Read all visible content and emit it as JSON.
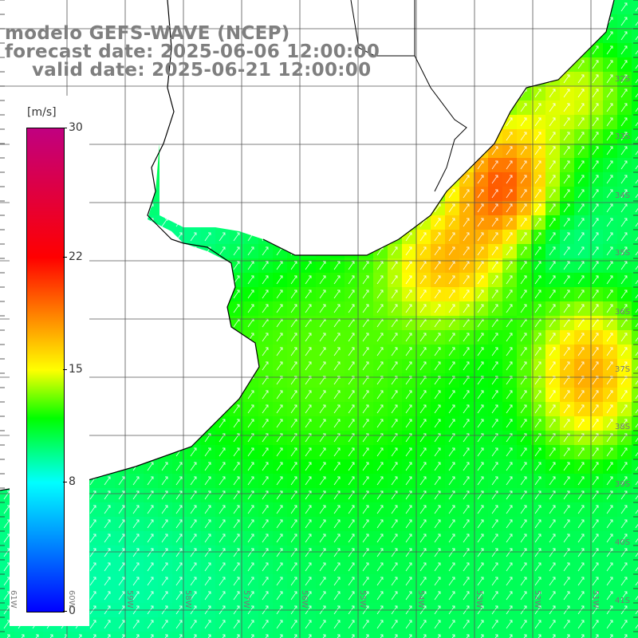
{
  "title": {
    "model": "modelo GEFS-WAVE (NCEP)",
    "forecast": "forecast date: 2025-06-06 12:00:00",
    "valid": "valid date: 2025-06-21 12:00:00"
  },
  "colorbar": {
    "unit": "[m/s]",
    "ticks": [
      "30",
      "22",
      "15",
      "8",
      "0"
    ],
    "tick_values": [
      30,
      22,
      15,
      8,
      0
    ],
    "min": 0,
    "max": 30,
    "stops": [
      {
        "v": 0,
        "color": "#0000ff"
      },
      {
        "v": 8,
        "color": "#00ffff"
      },
      {
        "v": 12,
        "color": "#00ff00"
      },
      {
        "v": 15,
        "color": "#ffff00"
      },
      {
        "v": 22,
        "color": "#ff0000"
      },
      {
        "v": 30,
        "color": "#c00080"
      }
    ]
  },
  "lat_labels": [
    "32S",
    "33S",
    "34S",
    "35S",
    "36S",
    "37S",
    "38S",
    "39S",
    "40S",
    "41S"
  ],
  "lon_labels": [
    "61W",
    "60W",
    "59W",
    "58W",
    "57W",
    "56W",
    "55W",
    "54W",
    "53W",
    "52W",
    "51W"
  ],
  "colors": {
    "land": "#ffffff",
    "coast": "#000000",
    "grid": "#555555",
    "arrows": "#ffffff",
    "label": "#7f7f7f"
  },
  "field_description": "wind speed field with direction arrows"
}
